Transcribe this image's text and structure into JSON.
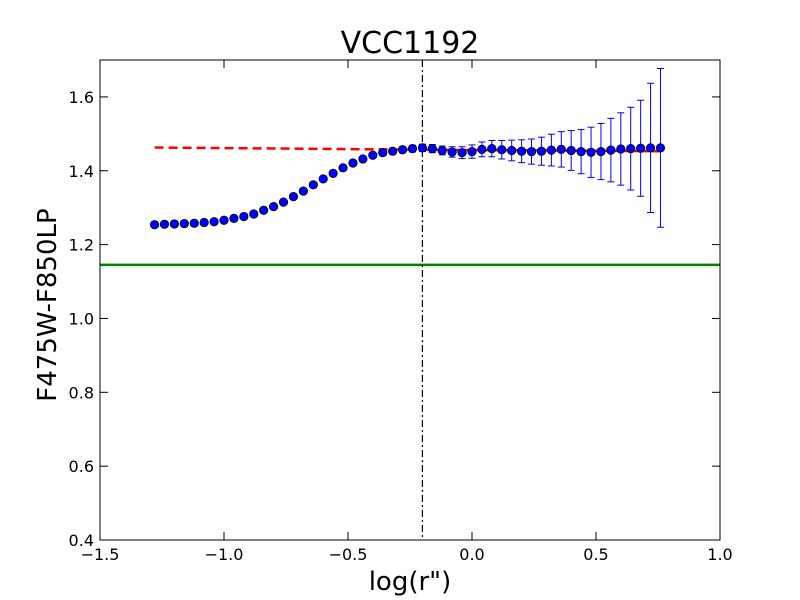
{
  "chart_data": {
    "type": "scatter",
    "title": "VCC1192",
    "xlabel": "log(r\")",
    "ylabel": "F475W-F850LP",
    "xlim": [
      -1.5,
      1.0
    ],
    "ylim": [
      0.4,
      1.7
    ],
    "xticks": [
      -1.5,
      -1.0,
      -0.5,
      0.0,
      0.5,
      1.0
    ],
    "xtick_labels": [
      "−1.5",
      "−1.0",
      "−0.5",
      "0.0",
      "0.5",
      "1.0"
    ],
    "yticks": [
      0.4,
      0.6,
      0.8,
      1.0,
      1.2,
      1.4,
      1.6
    ],
    "ytick_labels": [
      "0.4",
      "0.6",
      "0.8",
      "1.0",
      "1.2",
      "1.4",
      "1.6"
    ],
    "grid": false,
    "series": [
      {
        "name": "color profile",
        "kind": "points-with-errorbars",
        "color": "#0000ff",
        "x": [
          -1.28,
          -1.24,
          -1.2,
          -1.16,
          -1.12,
          -1.08,
          -1.04,
          -1.0,
          -0.96,
          -0.92,
          -0.88,
          -0.84,
          -0.8,
          -0.76,
          -0.72,
          -0.68,
          -0.64,
          -0.6,
          -0.56,
          -0.52,
          -0.48,
          -0.44,
          -0.4,
          -0.36,
          -0.32,
          -0.28,
          -0.24,
          -0.2,
          -0.16,
          -0.12,
          -0.08,
          -0.04,
          0.0,
          0.04,
          0.08,
          0.12,
          0.16,
          0.2,
          0.24,
          0.28,
          0.32,
          0.36,
          0.4,
          0.44,
          0.48,
          0.52,
          0.56,
          0.6,
          0.64,
          0.68,
          0.72,
          0.76
        ],
        "y": [
          1.254,
          1.255,
          1.256,
          1.257,
          1.258,
          1.26,
          1.262,
          1.266,
          1.271,
          1.276,
          1.283,
          1.293,
          1.303,
          1.315,
          1.33,
          1.345,
          1.362,
          1.378,
          1.393,
          1.408,
          1.421,
          1.432,
          1.442,
          1.449,
          1.453,
          1.457,
          1.46,
          1.462,
          1.46,
          1.455,
          1.451,
          1.449,
          1.452,
          1.458,
          1.46,
          1.457,
          1.455,
          1.453,
          1.452,
          1.453,
          1.456,
          1.458,
          1.455,
          1.452,
          1.45,
          1.452,
          1.456,
          1.459,
          1.46,
          1.461,
          1.462,
          1.462
        ],
        "yerr": [
          0.002,
          0.002,
          0.002,
          0.002,
          0.002,
          0.002,
          0.002,
          0.002,
          0.002,
          0.002,
          0.003,
          0.003,
          0.003,
          0.003,
          0.003,
          0.003,
          0.004,
          0.004,
          0.004,
          0.004,
          0.005,
          0.005,
          0.006,
          0.006,
          0.007,
          0.008,
          0.009,
          0.01,
          0.011,
          0.012,
          0.014,
          0.016,
          0.018,
          0.02,
          0.022,
          0.025,
          0.028,
          0.031,
          0.034,
          0.038,
          0.043,
          0.048,
          0.054,
          0.06,
          0.068,
          0.076,
          0.086,
          0.098,
          0.112,
          0.13,
          0.175,
          0.215
        ]
      },
      {
        "name": "outer fit (dashed)",
        "kind": "line",
        "style": "dashed",
        "color": "#ff0000",
        "x": [
          -1.28,
          -0.2
        ],
        "y": [
          1.463,
          1.457
        ]
      },
      {
        "name": "outer fit (solid)",
        "kind": "line",
        "style": "solid",
        "color": "#ff0000",
        "x": [
          -0.2,
          0.76
        ],
        "y": [
          1.457,
          1.453
        ]
      },
      {
        "name": "reference color",
        "kind": "hline",
        "style": "solid",
        "color": "#008000",
        "y": 1.145
      },
      {
        "name": "break radius",
        "kind": "vline",
        "style": "dashdot",
        "color": "#000000",
        "x": -0.2
      }
    ]
  }
}
